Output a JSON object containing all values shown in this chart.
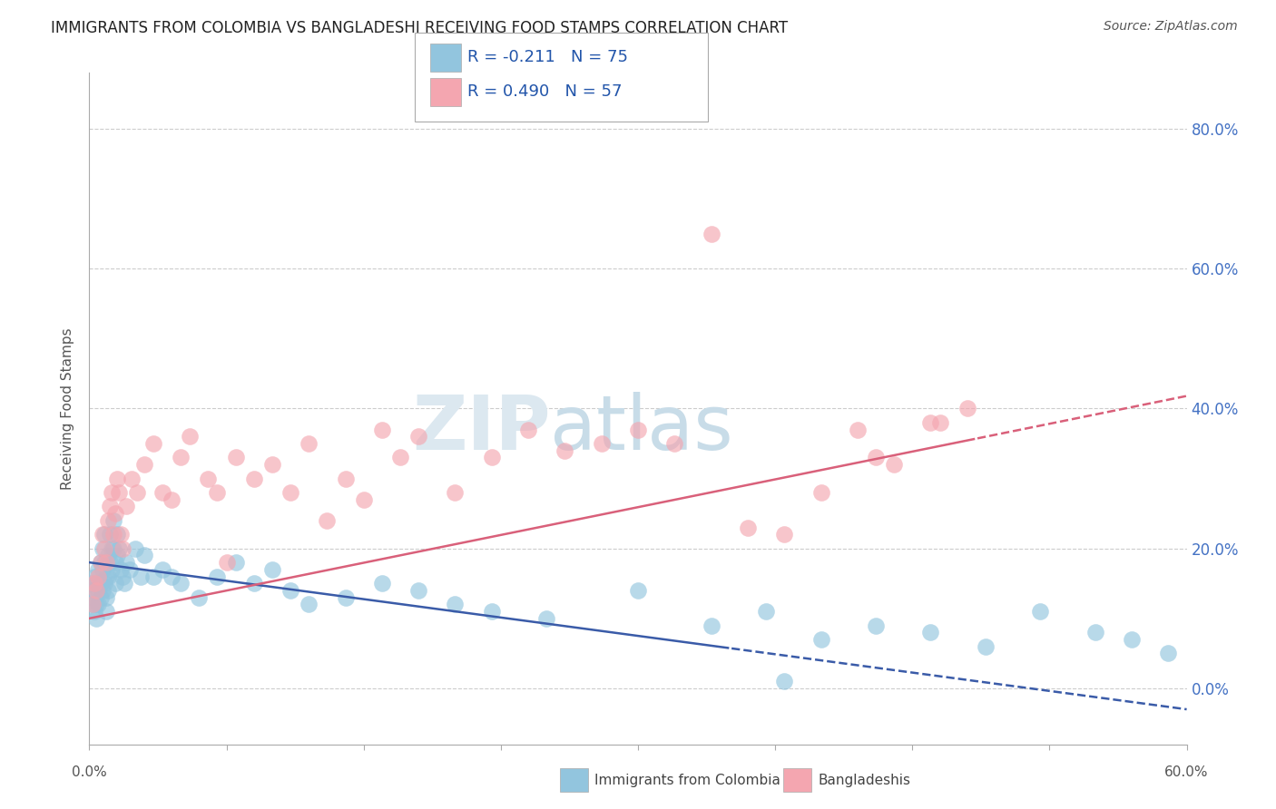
{
  "title": "IMMIGRANTS FROM COLOMBIA VS BANGLADESHI RECEIVING FOOD STAMPS CORRELATION CHART",
  "source": "Source: ZipAtlas.com",
  "ylabel": "Receiving Food Stamps",
  "ytick_vals": [
    0,
    20,
    40,
    60,
    80
  ],
  "xlim": [
    0,
    60
  ],
  "ylim": [
    -8,
    88
  ],
  "blue_color": "#92C5DE",
  "pink_color": "#F4A6B0",
  "blue_line_color": "#3A5BA8",
  "pink_line_color": "#D9607A",
  "colombia_x": [
    0.1,
    0.2,
    0.2,
    0.3,
    0.3,
    0.3,
    0.4,
    0.4,
    0.4,
    0.5,
    0.5,
    0.5,
    0.6,
    0.6,
    0.6,
    0.7,
    0.7,
    0.7,
    0.8,
    0.8,
    0.8,
    0.9,
    0.9,
    0.9,
    1.0,
    1.0,
    1.0,
    1.1,
    1.1,
    1.2,
    1.2,
    1.3,
    1.3,
    1.4,
    1.4,
    1.5,
    1.5,
    1.6,
    1.7,
    1.8,
    1.9,
    2.0,
    2.2,
    2.5,
    2.8,
    3.0,
    3.5,
    4.0,
    4.5,
    5.0,
    6.0,
    7.0,
    8.0,
    9.0,
    10.0,
    11.0,
    12.0,
    14.0,
    16.0,
    18.0,
    20.0,
    22.0,
    25.0,
    30.0,
    34.0,
    37.0,
    40.0,
    43.0,
    46.0,
    49.0,
    52.0,
    55.0,
    57.0,
    59.0,
    38.0
  ],
  "colombia_y": [
    15,
    14,
    12,
    16,
    13,
    11,
    15,
    12,
    10,
    17,
    14,
    12,
    18,
    15,
    13,
    20,
    17,
    14,
    22,
    18,
    15,
    16,
    13,
    11,
    19,
    16,
    14,
    22,
    18,
    20,
    17,
    24,
    20,
    18,
    15,
    22,
    19,
    20,
    17,
    16,
    15,
    18,
    17,
    20,
    16,
    19,
    16,
    17,
    16,
    15,
    13,
    16,
    18,
    15,
    17,
    14,
    12,
    13,
    15,
    14,
    12,
    11,
    10,
    14,
    9,
    11,
    7,
    9,
    8,
    6,
    11,
    8,
    7,
    5,
    1
  ],
  "bangla_x": [
    0.2,
    0.3,
    0.4,
    0.5,
    0.6,
    0.7,
    0.8,
    0.9,
    1.0,
    1.1,
    1.2,
    1.3,
    1.4,
    1.5,
    1.6,
    1.7,
    1.8,
    2.0,
    2.3,
    2.6,
    3.0,
    3.5,
    4.0,
    4.5,
    5.0,
    5.5,
    6.5,
    7.0,
    8.0,
    9.0,
    10.0,
    11.0,
    12.0,
    13.0,
    14.0,
    15.0,
    17.0,
    18.0,
    20.0,
    22.0,
    24.0,
    26.0,
    28.0,
    30.0,
    32.0,
    34.0,
    38.0,
    40.0,
    43.0,
    46.0,
    48.0,
    7.5,
    16.0,
    36.0,
    42.0,
    44.0,
    46.5
  ],
  "bangla_y": [
    12,
    15,
    14,
    16,
    18,
    22,
    20,
    18,
    24,
    26,
    28,
    22,
    25,
    30,
    28,
    22,
    20,
    26,
    30,
    28,
    32,
    35,
    28,
    27,
    33,
    36,
    30,
    28,
    33,
    30,
    32,
    28,
    35,
    24,
    30,
    27,
    33,
    36,
    28,
    33,
    37,
    34,
    35,
    37,
    35,
    65,
    22,
    28,
    33,
    38,
    40,
    18,
    37,
    23,
    37,
    32,
    38
  ]
}
